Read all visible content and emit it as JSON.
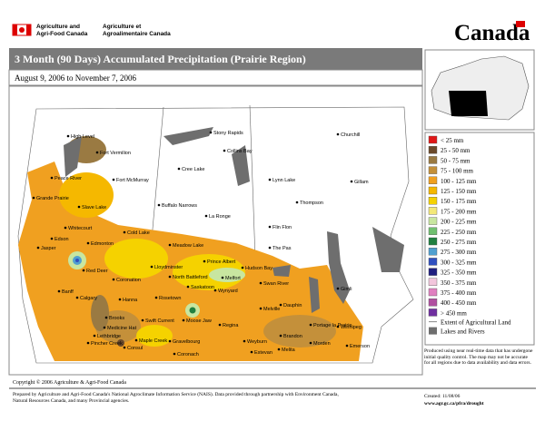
{
  "header": {
    "org_en_1": "Agriculture and",
    "org_en_2": "Agri-Food Canada",
    "org_fr_1": "Agriculture et",
    "org_fr_2": "Agroalimentaire Canada",
    "wordmark": "Canada"
  },
  "title": "3 Month (90 Days) Accumulated Precipitation (Prairie Region)",
  "subtitle": "August 9, 2006 to November 7, 2006",
  "legend": [
    {
      "label": "< 25 mm",
      "color": "#e01818"
    },
    {
      "label": "25 - 50 mm",
      "color": "#6b4a2b"
    },
    {
      "label": "50 - 75 mm",
      "color": "#9a7a42"
    },
    {
      "label": "75 - 100 mm",
      "color": "#c4903a"
    },
    {
      "label": "100 - 125 mm",
      "color": "#f0a020"
    },
    {
      "label": "125 - 150 mm",
      "color": "#f5b800"
    },
    {
      "label": "150 - 175 mm",
      "color": "#f5d200"
    },
    {
      "label": "175 - 200 mm",
      "color": "#f3e878"
    },
    {
      "label": "200 - 225 mm",
      "color": "#c8e6a0"
    },
    {
      "label": "225 - 250 mm",
      "color": "#70c070"
    },
    {
      "label": "250 - 275 mm",
      "color": "#208040"
    },
    {
      "label": "275 - 300 mm",
      "color": "#50a0d0"
    },
    {
      "label": "300 - 325 mm",
      "color": "#3050c0"
    },
    {
      "label": "325 - 350 mm",
      "color": "#202080"
    },
    {
      "label": "350 - 375 mm",
      "color": "#f2c6dc"
    },
    {
      "label": "375 - 400 mm",
      "color": "#e080c0"
    },
    {
      "label": "400 - 450 mm",
      "color": "#b050a0"
    },
    {
      "label": "> 450 mm",
      "color": "#7030a0"
    }
  ],
  "extra_legend": {
    "agri": "Extent of Agricultural Land",
    "lakes": "Lakes and Rivers"
  },
  "note": "Produced using near real-time data that has undergone initial quality control. The map may not be accurate for all regions due to data availability and data errors.",
  "copyright": "Copyright © 2006 Agriculture & Agri-Food Canada",
  "footer": {
    "prepared": "Prepared by Agriculture and Agri-Food Canada's National Agroclimate Information Service (NAIS). Data provided through partnership with Environment Canada, Natural Resources Canada, and many Provincial agencies.",
    "created": "Created: 11/08/06",
    "url": "www.agr.gc.ca/pfra/drought"
  },
  "places": [
    "High Level",
    "Fort Vermilion",
    "Peace River",
    "Fort McMurray",
    "Grande Prairie",
    "Slave Lake",
    "Whitecourt",
    "Edson",
    "Jasper",
    "Cold Lake",
    "Edmonton",
    "Red Deer",
    "Coronation",
    "Lloydminster",
    "Meadow Lake",
    "Prince Albert",
    "Hudson Bay",
    "North Battleford",
    "Melfort",
    "Banff",
    "Calgary",
    "Hanna",
    "Rosetown",
    "Saskatoon",
    "Wynyard",
    "Swan River",
    "Dauphin",
    "Brooks",
    "Medicine Hat",
    "Lethbridge",
    "Pincher Creek",
    "Swift Current",
    "Maple Creek",
    "Moose Jaw",
    "Regina",
    "Melville",
    "Gravelbourg",
    "Consul",
    "Coronach",
    "Weyburn",
    "Estevan",
    "Melita",
    "Brandon",
    "Morden",
    "Emerson",
    "Winnipeg",
    "Portage la Prairie",
    "Gimli",
    "The Pas",
    "Flin Flon",
    "La Ronge",
    "Buffalo Narrows",
    "Cree Lake",
    "Lynn Lake",
    "Thompson",
    "Gillam",
    "Churchill",
    "Stony Rapids",
    "Collins Bay"
  ]
}
